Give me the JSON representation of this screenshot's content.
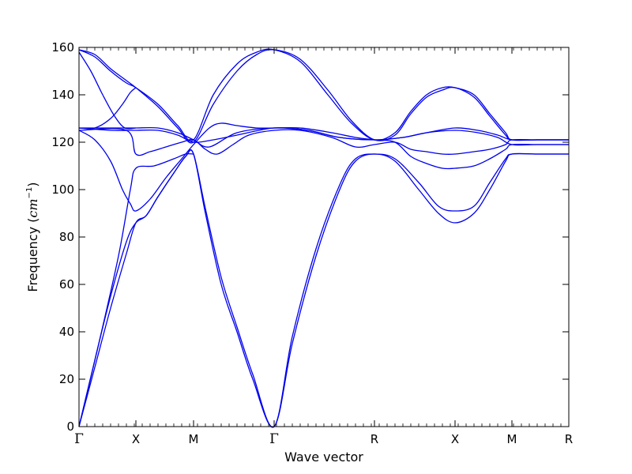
{
  "chart_data": {
    "type": "line",
    "title": "",
    "xlabel": "Wave vector",
    "ylabel_text": "Frequency (",
    "ylabel_math": "cm",
    "ylabel_exp": "−1",
    "ylabel_close": ")",
    "ylim": [
      0,
      160
    ],
    "yticks": [
      0,
      20,
      40,
      60,
      80,
      100,
      120,
      140,
      160
    ],
    "xlim": [
      0,
      620
    ],
    "xticks": [
      {
        "x": 0,
        "label": "Γ"
      },
      {
        "x": 72,
        "label": "X"
      },
      {
        "x": 145,
        "label": "M"
      },
      {
        "x": 247,
        "label": "Γ"
      },
      {
        "x": 374,
        "label": "R"
      },
      {
        "x": 476,
        "label": "X"
      },
      {
        "x": 548,
        "label": "M"
      },
      {
        "x": 620,
        "label": "R"
      }
    ],
    "line_color": "#0000ee",
    "grid": false,
    "series": [
      {
        "points": [
          [
            0,
            0
          ],
          [
            20,
            25
          ],
          [
            40,
            50
          ],
          [
            60,
            73
          ],
          [
            72,
            86
          ],
          [
            85,
            89
          ],
          [
            100,
            97
          ],
          [
            120,
            107
          ],
          [
            135,
            114
          ],
          [
            145,
            115
          ],
          [
            160,
            90
          ],
          [
            180,
            60
          ],
          [
            200,
            40
          ],
          [
            220,
            20
          ],
          [
            247,
            0
          ],
          [
            270,
            35
          ],
          [
            300,
            72
          ],
          [
            330,
            100
          ],
          [
            350,
            112
          ],
          [
            374,
            115
          ],
          [
            400,
            112
          ],
          [
            430,
            100
          ],
          [
            455,
            90
          ],
          [
            476,
            86
          ],
          [
            500,
            90
          ],
          [
            520,
            100
          ],
          [
            540,
            112
          ],
          [
            548,
            115
          ],
          [
            580,
            115
          ],
          [
            620,
            115
          ]
        ]
      },
      {
        "points": [
          [
            0,
            0
          ],
          [
            20,
            28
          ],
          [
            40,
            55
          ],
          [
            60,
            78
          ],
          [
            72,
            86
          ],
          [
            85,
            89
          ],
          [
            100,
            97
          ],
          [
            120,
            107
          ],
          [
            135,
            114
          ],
          [
            145,
            115
          ],
          [
            160,
            92
          ],
          [
            180,
            63
          ],
          [
            200,
            42
          ],
          [
            220,
            22
          ],
          [
            247,
            0
          ],
          [
            270,
            38
          ],
          [
            300,
            75
          ],
          [
            330,
            102
          ],
          [
            350,
            113
          ],
          [
            374,
            115
          ],
          [
            400,
            113
          ],
          [
            430,
            103
          ],
          [
            455,
            93
          ],
          [
            476,
            91
          ],
          [
            500,
            93
          ],
          [
            520,
            103
          ],
          [
            540,
            113
          ],
          [
            548,
            115
          ],
          [
            580,
            115
          ],
          [
            620,
            115
          ]
        ]
      },
      {
        "points": [
          [
            0,
            0
          ],
          [
            25,
            35
          ],
          [
            50,
            72
          ],
          [
            65,
            100
          ],
          [
            72,
            109
          ],
          [
            95,
            110
          ],
          [
            120,
            113
          ],
          [
            135,
            115
          ],
          [
            145,
            115
          ]
        ]
      },
      {
        "points": [
          [
            0,
            125
          ],
          [
            20,
            121
          ],
          [
            40,
            112
          ],
          [
            55,
            100
          ],
          [
            65,
            94
          ],
          [
            72,
            91
          ],
          [
            90,
            96
          ],
          [
            110,
            105
          ],
          [
            130,
            113
          ],
          [
            145,
            119
          ],
          [
            165,
            126
          ],
          [
            180,
            128
          ],
          [
            200,
            127
          ],
          [
            225,
            126
          ],
          [
            247,
            126
          ],
          [
            280,
            126
          ],
          [
            320,
            124
          ],
          [
            350,
            122
          ],
          [
            374,
            121
          ],
          [
            400,
            120
          ],
          [
            420,
            114
          ],
          [
            440,
            111
          ],
          [
            460,
            109
          ],
          [
            476,
            109
          ],
          [
            500,
            110
          ],
          [
            520,
            113
          ],
          [
            540,
            117
          ],
          [
            548,
            119
          ],
          [
            580,
            119
          ],
          [
            620,
            119
          ]
        ]
      },
      {
        "points": [
          [
            0,
            125
          ],
          [
            60,
            125
          ],
          [
            72,
            115
          ],
          [
            90,
            116
          ],
          [
            110,
            118
          ],
          [
            130,
            120
          ],
          [
            145,
            121
          ],
          [
            160,
            117
          ],
          [
            175,
            115
          ],
          [
            195,
            119
          ],
          [
            215,
            123
          ],
          [
            247,
            125
          ],
          [
            280,
            125
          ],
          [
            320,
            122
          ],
          [
            350,
            118
          ],
          [
            374,
            119
          ],
          [
            400,
            120
          ],
          [
            420,
            117
          ],
          [
            440,
            116
          ],
          [
            460,
            115
          ],
          [
            476,
            115
          ],
          [
            500,
            116
          ],
          [
            520,
            117
          ],
          [
            540,
            119
          ],
          [
            548,
            121
          ],
          [
            580,
            121
          ],
          [
            620,
            121
          ]
        ]
      },
      {
        "points": [
          [
            0,
            126
          ],
          [
            60,
            126
          ],
          [
            72,
            126
          ],
          [
            100,
            126
          ],
          [
            125,
            124
          ],
          [
            145,
            121
          ],
          [
            165,
            118
          ],
          [
            200,
            124
          ],
          [
            247,
            126
          ],
          [
            290,
            125
          ],
          [
            330,
            122
          ],
          [
            374,
            121
          ],
          [
            410,
            122
          ],
          [
            440,
            124
          ],
          [
            476,
            126
          ],
          [
            505,
            125
          ],
          [
            530,
            123
          ],
          [
            548,
            121
          ],
          [
            580,
            121
          ],
          [
            620,
            121
          ]
        ]
      },
      {
        "points": [
          [
            0,
            126
          ],
          [
            40,
            125
          ],
          [
            65,
            125
          ],
          [
            72,
            125
          ],
          [
            100,
            125
          ],
          [
            125,
            123
          ],
          [
            145,
            120
          ],
          [
            170,
            121
          ],
          [
            200,
            123
          ],
          [
            247,
            126
          ],
          [
            290,
            125
          ],
          [
            330,
            122
          ],
          [
            374,
            121
          ],
          [
            410,
            122
          ],
          [
            440,
            124
          ],
          [
            476,
            125
          ],
          [
            505,
            124
          ],
          [
            530,
            122
          ],
          [
            548,
            119
          ],
          [
            580,
            119
          ],
          [
            620,
            119
          ]
        ]
      },
      {
        "points": [
          [
            0,
            159
          ],
          [
            20,
            156
          ],
          [
            40,
            150
          ],
          [
            60,
            145
          ],
          [
            72,
            143
          ],
          [
            100,
            136
          ],
          [
            125,
            127
          ],
          [
            145,
            121
          ],
          [
            170,
            140
          ],
          [
            200,
            153
          ],
          [
            225,
            158
          ],
          [
            247,
            159
          ],
          [
            280,
            154
          ],
          [
            315,
            140
          ],
          [
            345,
            128
          ],
          [
            374,
            121
          ],
          [
            400,
            124
          ],
          [
            420,
            133
          ],
          [
            440,
            140
          ],
          [
            460,
            143
          ],
          [
            476,
            143
          ],
          [
            500,
            140
          ],
          [
            520,
            132
          ],
          [
            540,
            124
          ],
          [
            548,
            121
          ],
          [
            580,
            121
          ],
          [
            620,
            121
          ]
        ]
      },
      {
        "points": [
          [
            0,
            159
          ],
          [
            20,
            157
          ],
          [
            40,
            151
          ],
          [
            60,
            146
          ],
          [
            72,
            143
          ],
          [
            100,
            135
          ],
          [
            125,
            126
          ],
          [
            145,
            120
          ],
          [
            170,
            136
          ],
          [
            200,
            150
          ],
          [
            225,
            157
          ],
          [
            247,
            159
          ],
          [
            280,
            155
          ],
          [
            315,
            142
          ],
          [
            345,
            129
          ],
          [
            374,
            121
          ],
          [
            400,
            123
          ],
          [
            420,
            132
          ],
          [
            440,
            139
          ],
          [
            460,
            142
          ],
          [
            476,
            143
          ],
          [
            500,
            139
          ],
          [
            520,
            131
          ],
          [
            540,
            123
          ],
          [
            548,
            121
          ],
          [
            580,
            121
          ],
          [
            620,
            121
          ]
        ]
      },
      {
        "points": [
          [
            0,
            158
          ],
          [
            15,
            150
          ],
          [
            30,
            140
          ],
          [
            45,
            131
          ],
          [
            58,
            126
          ],
          [
            72,
            126
          ]
        ]
      },
      {
        "points": [
          [
            0,
            126
          ],
          [
            20,
            126
          ],
          [
            40,
            130
          ],
          [
            55,
            136
          ],
          [
            65,
            141
          ],
          [
            72,
            143
          ]
        ]
      }
    ]
  }
}
